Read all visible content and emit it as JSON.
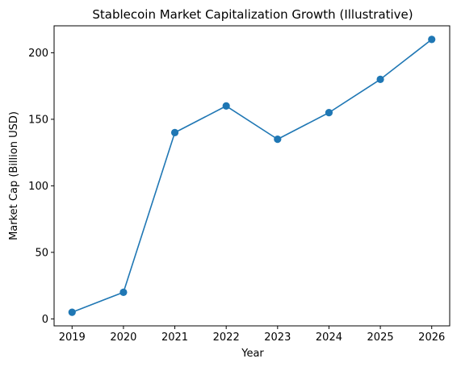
{
  "chart_data": {
    "type": "line",
    "title": "Stablecoin Market Capitalization Growth (Illustrative)",
    "xlabel": "Year",
    "ylabel": "Market Cap (Billion USD)",
    "x": [
      2019,
      2020,
      2021,
      2022,
      2023,
      2024,
      2025,
      2026
    ],
    "series": [
      {
        "values": [
          5,
          20,
          140,
          160,
          135,
          155,
          180,
          210
        ],
        "color": "#1f77b4",
        "marker": "circle"
      }
    ],
    "xlim": [
      2018.65,
      2026.35
    ],
    "ylim": [
      -5.25,
      220.25
    ],
    "yticks": [
      0,
      50,
      100,
      150,
      200
    ],
    "xticks": [
      2019,
      2020,
      2021,
      2022,
      2023,
      2024,
      2025,
      2026
    ],
    "grid": false,
    "legend": "none"
  }
}
